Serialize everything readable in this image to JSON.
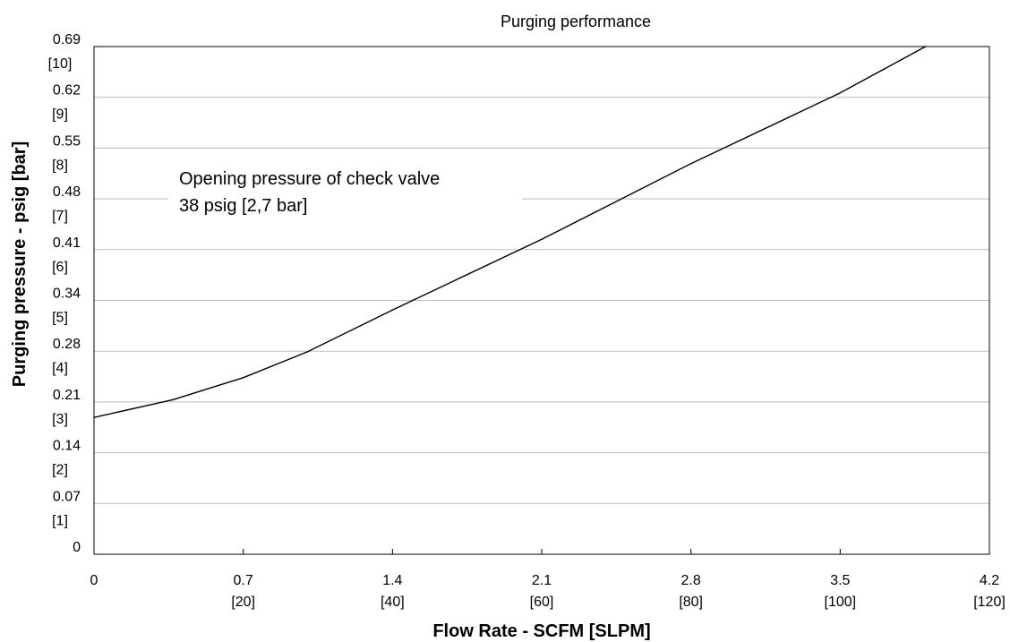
{
  "chart_data": {
    "type": "line",
    "title": "Purging performance",
    "xlabel": "Flow Rate - SCFM [SLPM]",
    "ylabel": "Purging pressure - psig [bar]",
    "xlim": [
      0,
      4.2
    ],
    "ylim": [
      0,
      0.69
    ],
    "grid": "horizontal",
    "x_ticks": [
      {
        "value": 0,
        "label": "0",
        "sub": ""
      },
      {
        "value": 0.7,
        "label": "0.7",
        "sub": "[20]"
      },
      {
        "value": 1.4,
        "label": "1.4",
        "sub": "[40]"
      },
      {
        "value": 2.1,
        "label": "2.1",
        "sub": "[60]"
      },
      {
        "value": 2.8,
        "label": "2.8",
        "sub": "[80]"
      },
      {
        "value": 3.5,
        "label": "3.5",
        "sub": "[100]"
      },
      {
        "value": 4.2,
        "label": "4.2",
        "sub": "[120]"
      }
    ],
    "y_ticks": [
      {
        "value": 0,
        "label": "0",
        "sub": ""
      },
      {
        "value": 0.069,
        "label": "0.07",
        "sub": "[1]"
      },
      {
        "value": 0.138,
        "label": "0.14",
        "sub": "[2]"
      },
      {
        "value": 0.207,
        "label": "0.21",
        "sub": "[3]"
      },
      {
        "value": 0.276,
        "label": "0.28",
        "sub": "[4]"
      },
      {
        "value": 0.345,
        "label": "0.34",
        "sub": "[5]"
      },
      {
        "value": 0.414,
        "label": "0.41",
        "sub": "[6]"
      },
      {
        "value": 0.483,
        "label": "0.48",
        "sub": "[7]"
      },
      {
        "value": 0.552,
        "label": "0.55",
        "sub": "[8]"
      },
      {
        "value": 0.621,
        "label": "0.62",
        "sub": "[9]"
      },
      {
        "value": 0.69,
        "label": "0.69",
        "sub": "[10]"
      }
    ],
    "series": [
      {
        "color": "#000000",
        "points": [
          [
            0,
            0.186
          ],
          [
            0.37,
            0.21
          ],
          [
            0.7,
            0.24
          ],
          [
            1.0,
            0.275
          ],
          [
            1.4,
            0.332
          ],
          [
            2.1,
            0.428
          ],
          [
            2.8,
            0.531
          ],
          [
            3.5,
            0.627
          ],
          [
            3.9,
            0.69
          ]
        ]
      }
    ],
    "annotation": {
      "lines": [
        "Opening pressure of check valve",
        "38 psig [2,7 bar]"
      ]
    }
  }
}
